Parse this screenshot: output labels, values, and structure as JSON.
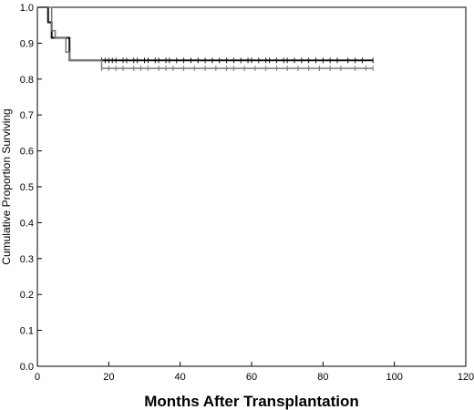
{
  "chart_data": {
    "type": "line",
    "xlabel": "Months After Transplantation",
    "ylabel": "Cumulative Proportion Surviving",
    "xlim": [
      0,
      120
    ],
    "ylim": [
      0,
      1.0
    ],
    "xticks": [
      "0",
      "20",
      "40",
      "60",
      "80",
      "100",
      "120"
    ],
    "yticks": [
      "0.0",
      "0.1",
      "0.2",
      "0.3",
      "0.4",
      "0.5",
      "0.6",
      "0.7",
      "0.8",
      "0.9",
      "1.0"
    ],
    "grid": false,
    "legend": "none",
    "series": [
      {
        "color": "#111111",
        "steps": [
          [
            0,
            1.0
          ],
          [
            3,
            0.958
          ],
          [
            4,
            0.915
          ],
          [
            9,
            0.852
          ],
          [
            94,
            0.852
          ]
        ],
        "censor_months": [
          18,
          19,
          20,
          21,
          22,
          24,
          25,
          27,
          28,
          30,
          31,
          33,
          34,
          36,
          37,
          39,
          41,
          43,
          45,
          47,
          49,
          51,
          53,
          55,
          57,
          59,
          60,
          62,
          64,
          65,
          67,
          69,
          70,
          72,
          74,
          76,
          78,
          80,
          82,
          84,
          87,
          89,
          91,
          94
        ]
      },
      {
        "color": "#777777",
        "steps": [
          [
            0,
            1.0
          ],
          [
            4,
            0.935
          ],
          [
            5,
            0.915
          ],
          [
            8,
            0.875
          ],
          [
            9,
            0.852
          ],
          [
            18,
            0.83
          ],
          [
            94,
            0.83
          ]
        ],
        "censor_months": [
          18,
          20,
          22,
          24,
          27,
          29,
          31,
          34,
          36,
          38,
          41,
          44,
          47,
          50,
          53,
          55,
          58,
          61,
          64,
          67,
          70,
          73,
          76,
          79,
          82,
          85,
          89,
          92,
          94
        ]
      }
    ]
  }
}
